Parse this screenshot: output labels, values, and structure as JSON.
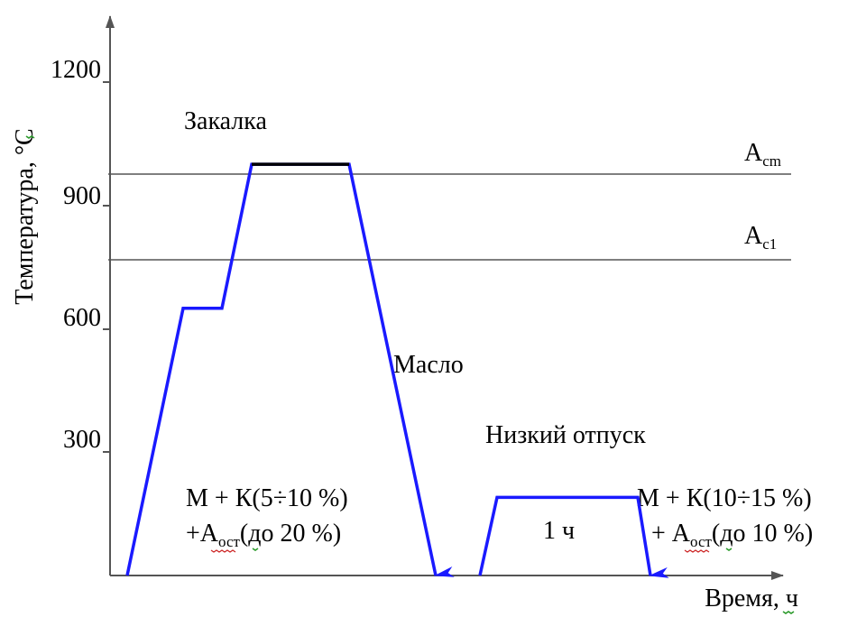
{
  "axes": {
    "y_ticks": [
      "1200",
      "900",
      "600",
      "300"
    ],
    "y_label": "Температура, °С",
    "x_label": "Время, ч"
  },
  "critical_points": {
    "acm": {
      "main": "A",
      "sub": "cm",
      "temperature": 970
    },
    "ac1": {
      "main": "A",
      "sub": "c1",
      "temperature": 760
    }
  },
  "stages": {
    "quench_title": "Закалка",
    "oil_label": "Масло",
    "temper_title": "Низкий отпуск",
    "temper_time": "1 ч"
  },
  "structures": {
    "after_quench": {
      "line1": "М + К(5÷10 %)",
      "line2_prefix": "+А",
      "line2_sub": "ост",
      "line2_suffix": "(до 20 %)"
    },
    "after_temper": {
      "line1": "М + К(10÷15 %)",
      "line2_prefix": "+ А",
      "line2_sub": "ост",
      "line2_suffix": "(до 10 %)"
    }
  },
  "chart_data": {
    "type": "line",
    "ylim": [
      0,
      1200
    ],
    "series": [
      {
        "values": [
          [
            0,
            0
          ],
          [
            1,
            650
          ],
          [
            2,
            650
          ],
          [
            3,
            1000
          ],
          [
            4,
            1000
          ],
          [
            5,
            0
          ]
        ]
      },
      {
        "values": [
          [
            6,
            0
          ],
          [
            7,
            190
          ],
          [
            8,
            190
          ],
          [
            9,
            0
          ]
        ]
      }
    ]
  },
  "colors": {
    "curve": "#1a1aff",
    "hold_segment": "#000000",
    "axis": "#555555"
  }
}
